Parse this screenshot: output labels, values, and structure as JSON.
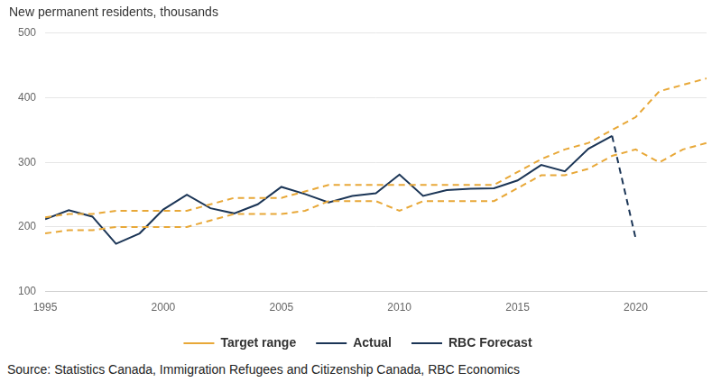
{
  "chart_data": {
    "type": "line",
    "y_label": "New permanent residents, thousands",
    "source": "Source: Statistics Canada, Immigration Refugees and Citizenship Canada, RBC Economics",
    "x": [
      1995,
      1996,
      1997,
      1998,
      1999,
      2000,
      2001,
      2002,
      2003,
      2004,
      2005,
      2006,
      2007,
      2008,
      2009,
      2010,
      2011,
      2012,
      2013,
      2014,
      2015,
      2016,
      2017,
      2018,
      2019,
      2020,
      2021,
      2022,
      2023
    ],
    "xlim": [
      1995,
      2023
    ],
    "xticks": [
      1995,
      2000,
      2005,
      2010,
      2015,
      2020
    ],
    "ylim": [
      100,
      500
    ],
    "yticks": [
      100,
      200,
      300,
      400,
      500
    ],
    "grid": true,
    "legend": "bottom",
    "series": [
      {
        "name": "Target range",
        "color": "#e8a838",
        "line_style": "dashed",
        "low": [
          190,
          195,
          195,
          200,
          200,
          200,
          200,
          210,
          220,
          220,
          220,
          225,
          240,
          240,
          240,
          225,
          240,
          240,
          240,
          240,
          260,
          280,
          280,
          290,
          310,
          320,
          300,
          320,
          330
        ],
        "high": [
          215,
          220,
          220,
          225,
          225,
          225,
          225,
          235,
          245,
          245,
          245,
          255,
          265,
          265,
          265,
          265,
          265,
          265,
          265,
          265,
          285,
          305,
          320,
          330,
          350,
          370,
          410,
          420,
          430
        ]
      },
      {
        "name": "Actual",
        "color": "#1b3556",
        "line_style": "solid",
        "values": [
          212,
          226,
          216,
          174,
          190,
          227,
          250,
          229,
          221,
          235,
          262,
          251,
          238,
          248,
          252,
          281,
          248,
          257,
          259,
          260,
          272,
          296,
          286,
          321,
          341,
          null,
          null,
          null,
          null
        ]
      },
      {
        "name": "RBC Forecast",
        "color": "#1b3556",
        "line_style": "dashed",
        "values": [
          null,
          null,
          null,
          null,
          null,
          null,
          null,
          null,
          null,
          null,
          null,
          null,
          null,
          null,
          null,
          null,
          null,
          null,
          null,
          null,
          null,
          null,
          null,
          null,
          341,
          182,
          null,
          null,
          null
        ]
      }
    ]
  }
}
